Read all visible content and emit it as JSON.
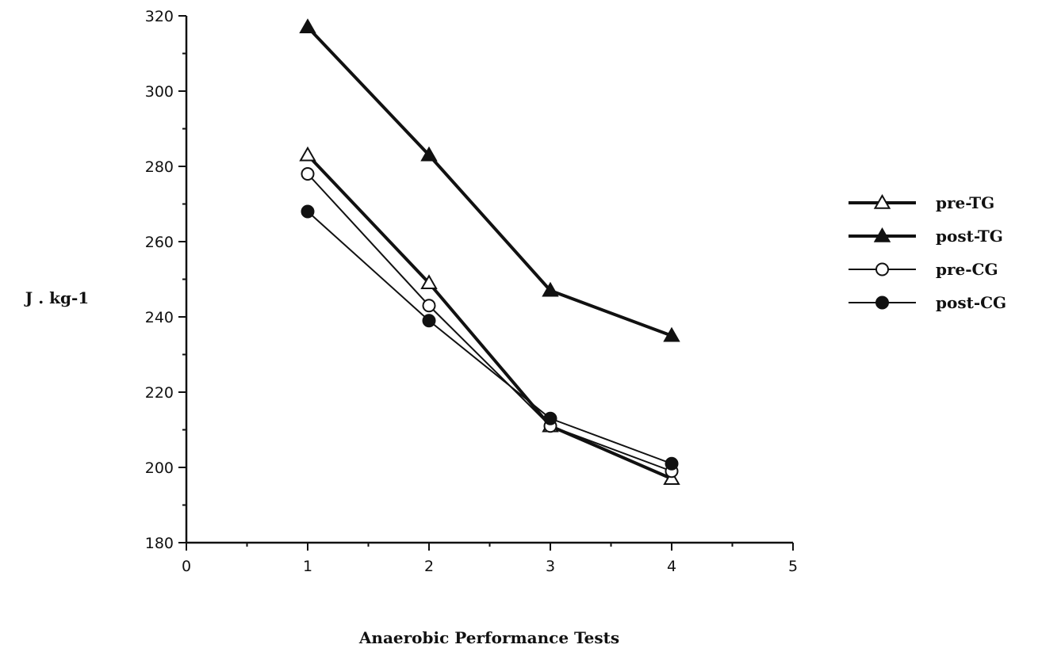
{
  "chart_data": {
    "type": "line",
    "xlabel": "Anaerobic Performance Tests",
    "ylabel": "J . kg-1",
    "xlim": [
      0,
      5
    ],
    "ylim": [
      180,
      320
    ],
    "x_ticks": [
      0,
      1,
      2,
      3,
      4,
      5
    ],
    "y_ticks": [
      180,
      200,
      220,
      240,
      260,
      280,
      300,
      320
    ],
    "grid": false,
    "legend_position": "right",
    "x": [
      1,
      2,
      3,
      4
    ],
    "series": [
      {
        "name": "pre-TG",
        "values": [
          283,
          249,
          211,
          197
        ],
        "marker": "triangle-open",
        "line": "thick"
      },
      {
        "name": "post-TG",
        "values": [
          317,
          283,
          247,
          235
        ],
        "marker": "triangle-filled",
        "line": "thick"
      },
      {
        "name": "pre-CG",
        "values": [
          278,
          243,
          211,
          199
        ],
        "marker": "circle-open",
        "line": "thin"
      },
      {
        "name": "post-CG",
        "values": [
          268,
          239,
          213,
          201
        ],
        "marker": "circle-filled",
        "line": "thin"
      }
    ],
    "colors": {
      "ink": "#111111",
      "background": "#ffffff"
    }
  }
}
